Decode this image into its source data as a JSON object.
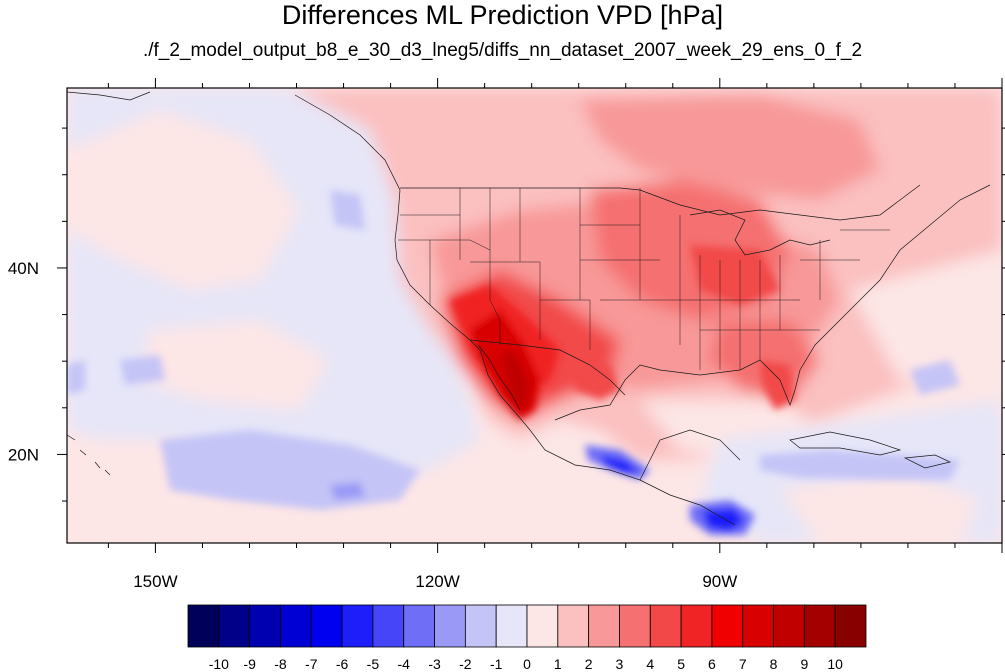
{
  "title": "Differences ML Prediction VPD [hPa]",
  "subtitle": "./f_2_model_output_b8_e_30_d3_lneg5/diffs_nn_dataset_2007_week_29_ens_0_f_2",
  "chart_data": {
    "type": "heatmap",
    "title": "Differences ML Prediction VPD [hPa]",
    "subtitle": "./f_2_model_output_b8_e_30_d3_lneg5/diffs_nn_dataset_2007_week_29_ens_0_f_2",
    "lon_range": [
      -159.4,
      -60
    ],
    "lat_range": [
      10.5,
      59.3
    ],
    "x_ticks": [
      {
        "value": -150,
        "label": "150W"
      },
      {
        "value": -120,
        "label": "120W"
      },
      {
        "value": -90,
        "label": "90W"
      }
    ],
    "y_ticks": [
      {
        "value": 20,
        "label": "20N"
      },
      {
        "value": 40,
        "label": "40N"
      }
    ],
    "colorbar": {
      "labels": [
        "-10",
        "-9",
        "-8",
        "-7",
        "-6",
        "-5",
        "-4",
        "-3",
        "-2",
        "-1",
        "0",
        "1",
        "2",
        "3",
        "4",
        "5",
        "6",
        "7",
        "8",
        "9",
        "10"
      ],
      "colors": [
        "#00005a",
        "#000088",
        "#0000b0",
        "#0000d4",
        "#0000f0",
        "#1e1efa",
        "#4646f8",
        "#6e6ef6",
        "#9a9af6",
        "#c4c4f7",
        "#e6e6f8",
        "#fde6e6",
        "#fbc0c0",
        "#f89898",
        "#f57070",
        "#f24848",
        "#f02424",
        "#f00000",
        "#d80000",
        "#c00000",
        "#a40000",
        "#880000"
      ]
    },
    "regions": [
      {
        "name": "pacific-light-blue",
        "level": -1,
        "lon": [
          -159,
          -118
        ],
        "lat": [
          14,
          52
        ]
      },
      {
        "name": "pacific-light-red",
        "level": 1,
        "lon": [
          -159,
          -128
        ],
        "lat": [
          22,
          57
        ]
      },
      {
        "name": "canada-red",
        "level": 2,
        "lon": [
          -128,
          -60
        ],
        "lat": [
          44,
          59
        ]
      },
      {
        "name": "us-red",
        "level": 3,
        "lon": [
          -105,
          -80
        ],
        "lat": [
          30,
          47
        ]
      },
      {
        "name": "southwest-dark-red",
        "level": 7,
        "lon": [
          -118,
          -106
        ],
        "lat": [
          24,
          36
        ]
      },
      {
        "name": "baja-dark-red",
        "level": 8,
        "lon": [
          -116,
          -112
        ],
        "lat": [
          23,
          32
        ]
      },
      {
        "name": "mexico-blue-coast",
        "level": -6,
        "lon": [
          -104,
          -96
        ],
        "lat": [
          16,
          20
        ]
      },
      {
        "name": "central-america-blue",
        "level": -6,
        "lon": [
          -93,
          -85
        ],
        "lat": [
          12,
          15
        ]
      },
      {
        "name": "hawaii-blue",
        "level": -2,
        "lon": [
          -155,
          -134
        ],
        "lat": [
          15,
          21
        ]
      },
      {
        "name": "caribbean-blue",
        "level": -2,
        "lon": [
          -87,
          -60
        ],
        "lat": [
          16,
          20
        ]
      }
    ]
  }
}
